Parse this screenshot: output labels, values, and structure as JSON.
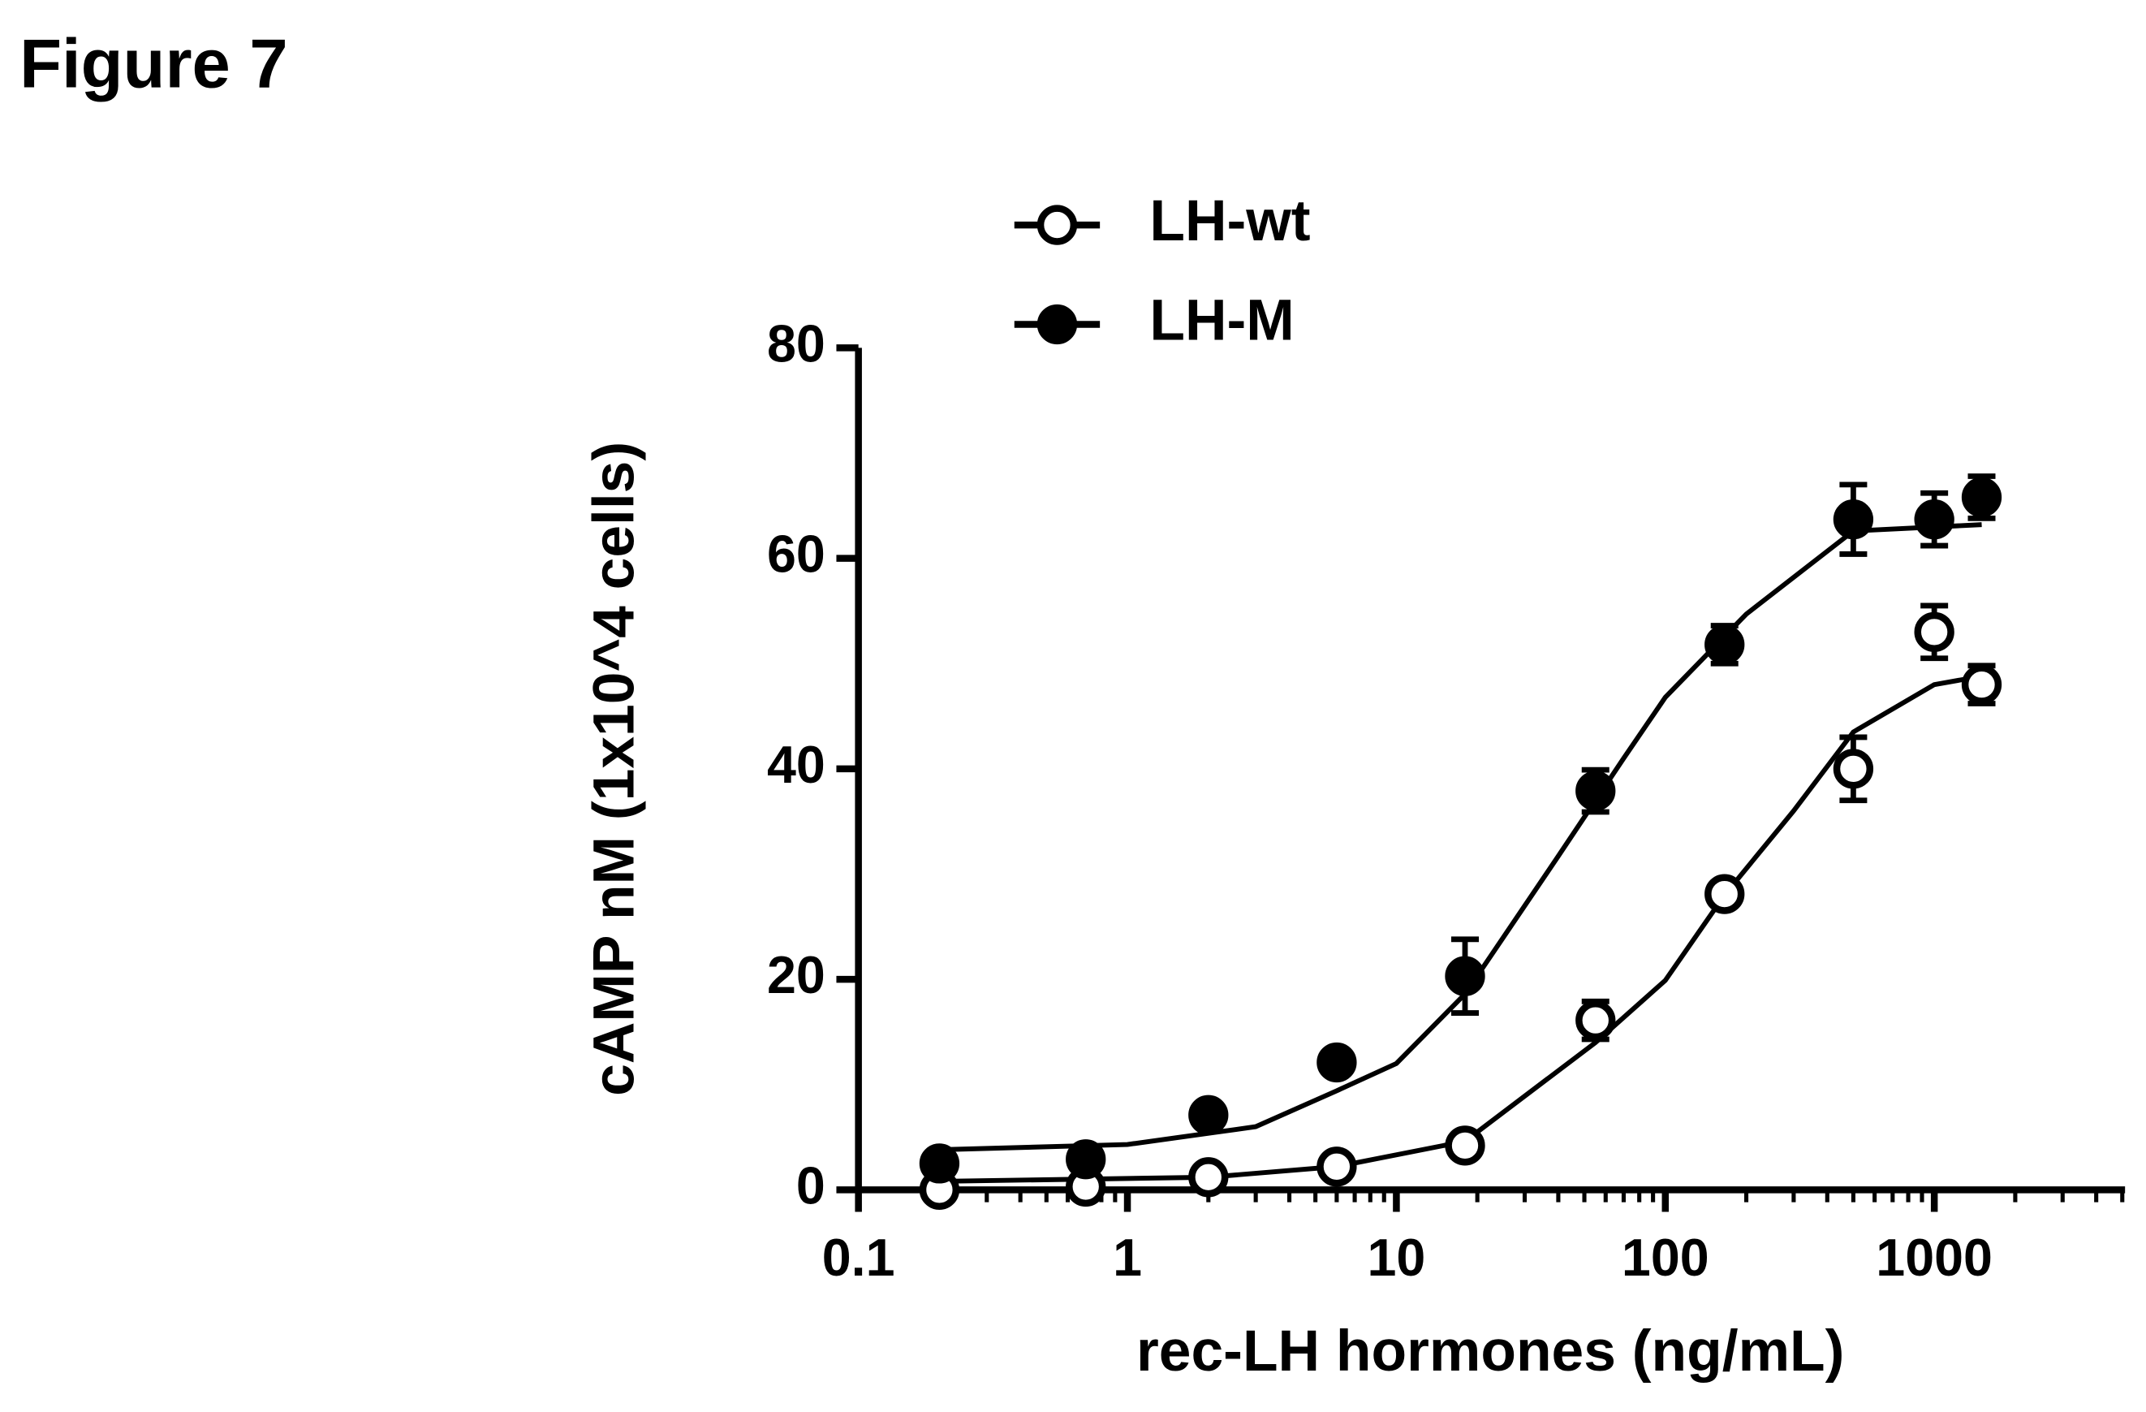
{
  "figure_label": "Figure 7",
  "chart_data": {
    "type": "scatter",
    "x_label": "rec-LH hormones (ng/mL)",
    "y_label": "cAMP nM (1x10^4 cells)",
    "x_log": true,
    "xlim": [
      0.1,
      5000
    ],
    "xticks": [
      0.1,
      1,
      10,
      100,
      1000
    ],
    "xminorticks": [
      0.2,
      0.3,
      0.4,
      0.5,
      0.6,
      0.7,
      0.8,
      0.9,
      2,
      3,
      4,
      5,
      6,
      7,
      8,
      9,
      20,
      30,
      40,
      50,
      60,
      70,
      80,
      90,
      200,
      300,
      400,
      500,
      600,
      700,
      800,
      900,
      2000,
      3000,
      4000,
      5000
    ],
    "ylim": [
      0,
      80
    ],
    "yticks": [
      0,
      20,
      40,
      60,
      80
    ],
    "legend": "top-left",
    "x": [
      0.2,
      0.7,
      2,
      6,
      18,
      55,
      166,
      500,
      1000,
      1500
    ],
    "series": [
      {
        "name": "LH-wt",
        "color": "#000000",
        "marker": "open",
        "values": [
          0,
          0.3,
          1.2,
          2.2,
          4.2,
          16.1,
          28.1,
          40,
          53,
          48
        ],
        "errors": [
          0.5,
          0.5,
          0.5,
          0.6,
          0.6,
          1.8,
          1,
          3,
          2.5,
          1.8
        ],
        "curve": {
          "x": [
            0.2,
            2,
            6,
            18,
            55,
            100,
            166,
            300,
            500,
            1000,
            1500
          ],
          "values": [
            0.8,
            1.2,
            2.2,
            4.6,
            14,
            19.9,
            28,
            36,
            43.5,
            48,
            48.8
          ]
        }
      },
      {
        "name": "LH-M",
        "color": "#000000",
        "marker": "filled",
        "values": [
          2.5,
          2.9,
          7.1,
          12.1,
          20.3,
          37.9,
          51.8,
          63.7,
          63.7,
          65.8
        ],
        "errors": [
          0.5,
          1,
          0.6,
          0.6,
          3.5,
          2,
          1.8,
          3.3,
          2.5,
          2
        ],
        "curve": {
          "x": [
            0.2,
            1,
            3,
            6,
            10,
            18,
            40,
            70,
            100,
            200,
            500,
            1500
          ],
          "values": [
            3.8,
            4.3,
            6,
            9.4,
            12,
            18.6,
            31.7,
            41,
            46.8,
            54.7,
            62.6,
            63.2
          ]
        }
      }
    ]
  }
}
